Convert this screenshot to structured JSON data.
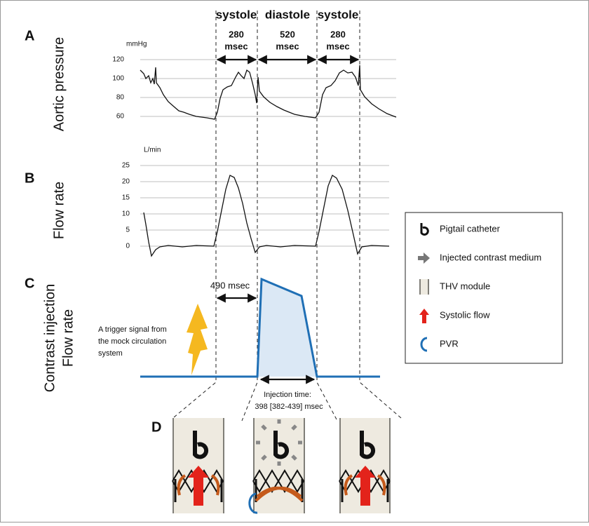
{
  "panel_labels": [
    "A",
    "B",
    "C",
    "D"
  ],
  "rows": {
    "a": "Aortic pressure",
    "b": "Flow rate",
    "c": [
      "Contrast injection",
      "Flow rate"
    ]
  },
  "phases": [
    {
      "name": "systole",
      "duration": [
        "280",
        "msec"
      ]
    },
    {
      "name": "diastole",
      "duration": [
        "520",
        "msec"
      ]
    },
    {
      "name": "systole",
      "duration": [
        "280",
        "msec"
      ]
    }
  ],
  "pressure_axis": {
    "unit": "mmHg",
    "ticks": [
      120,
      100,
      80,
      60
    ]
  },
  "flow_axis": {
    "unit": "L/min",
    "ticks": [
      25,
      20,
      15,
      10,
      5,
      0
    ]
  },
  "delay": "490 msec",
  "trigger": [
    "A trigger signal from",
    "the mock circulation",
    "system"
  ],
  "injection": [
    "Injection time:",
    "398 [382-439] msec"
  ],
  "legend": [
    "Pigtail catheter",
    "Injected contrast medium",
    "THV module",
    "Systolic flow",
    "PVR"
  ]
}
